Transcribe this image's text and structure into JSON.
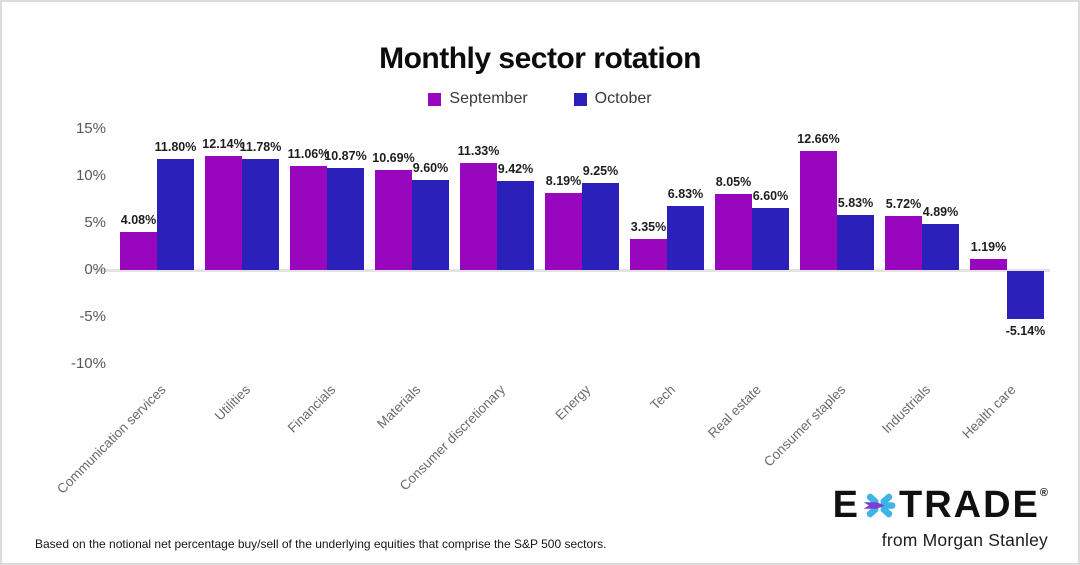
{
  "title": "Monthly sector rotation",
  "chart_data": {
    "type": "bar",
    "title": "Monthly sector rotation",
    "categories": [
      "Communication services",
      "Utilities",
      "Financials",
      "Materials",
      "Consumer discretionary",
      "Energy",
      "Tech",
      "Real estate",
      "Consumer staples",
      "Industrials",
      "Health care"
    ],
    "series": [
      {
        "name": "September",
        "color": "#9807BE",
        "values": [
          4.08,
          12.14,
          11.06,
          10.69,
          11.33,
          8.19,
          3.35,
          8.05,
          12.66,
          5.72,
          1.19
        ]
      },
      {
        "name": "October",
        "color": "#2B20BA",
        "values": [
          11.8,
          11.78,
          10.87,
          9.6,
          9.42,
          9.25,
          6.83,
          6.6,
          5.83,
          4.89,
          -5.14
        ]
      }
    ],
    "yticks": [
      15,
      10,
      5,
      0,
      -5,
      -10
    ],
    "ylim": [
      -10,
      15
    ],
    "ytick_suffix": "%",
    "grid": false,
    "legend_position": "top",
    "value_labels": "shown above bars, two decimals with % sign"
  },
  "footnote": "Based on the notional net percentage buy/sell of the underlying equities that comprise the S&P 500 sectors.",
  "logo": {
    "brand_e": "E",
    "brand_rest": "TRADE",
    "registered": "®",
    "tagline": "from Morgan Stanley",
    "star_blue": "#3FB4E6",
    "star_purple": "#7B3FD6"
  }
}
